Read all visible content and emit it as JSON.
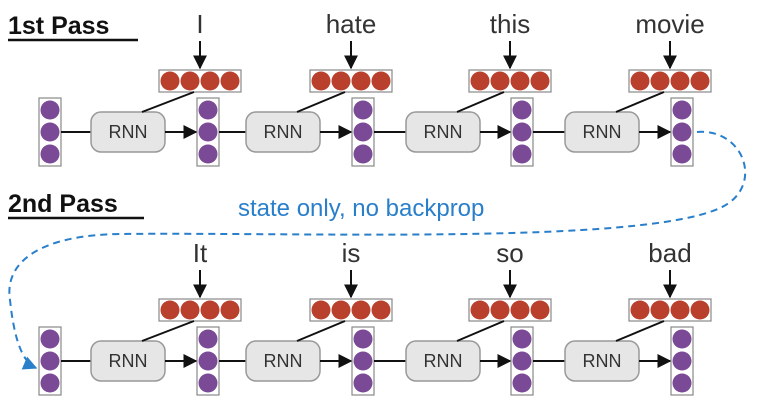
{
  "passes": [
    {
      "title": "1st Pass",
      "words": [
        "I",
        "hate",
        "this",
        "movie"
      ]
    },
    {
      "title": "2nd Pass",
      "words": [
        "It",
        "is",
        "so",
        "bad"
      ]
    }
  ],
  "rnn_label": "RNN",
  "annotation": "state only, no backprop",
  "colors": {
    "state_node": "#7b4a97",
    "embedding_node": "#b8402d",
    "rnn_fill": "#e6e6e6",
    "rnn_stroke": "#999999",
    "annotation": "#2a7fcb",
    "line": "#111111"
  }
}
